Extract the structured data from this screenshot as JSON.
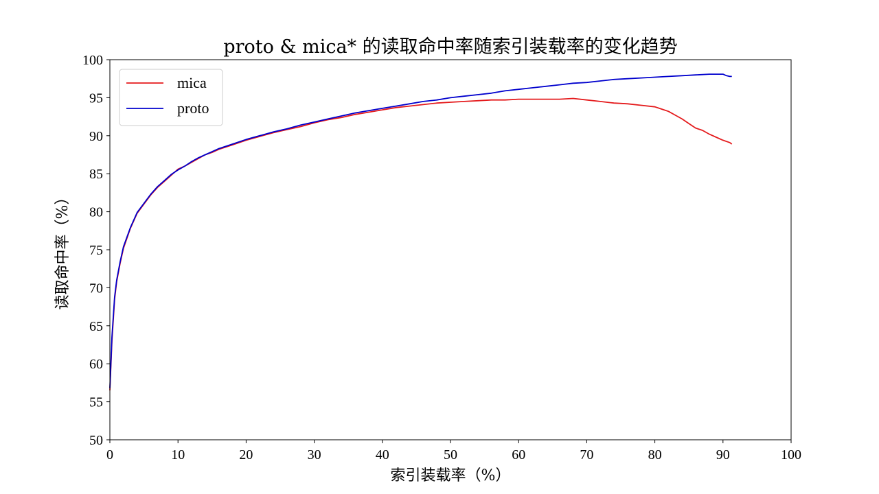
{
  "chart_data": {
    "type": "line",
    "title": "proto & mica* 的读取命中率随索引装载率的变化趋势",
    "xlabel": "索引装载率（%）",
    "ylabel": "读取命中率（%）",
    "xlim": [
      0,
      100
    ],
    "ylim": [
      50,
      100
    ],
    "x_ticks": [
      0,
      10,
      20,
      30,
      40,
      50,
      60,
      70,
      80,
      90,
      100
    ],
    "y_ticks": [
      50,
      55,
      60,
      65,
      70,
      75,
      80,
      85,
      90,
      95,
      100
    ],
    "grid": false,
    "legend_position": "top-left",
    "series": [
      {
        "name": "mica",
        "color": "#e41a1c",
        "x": [
          0,
          0.3,
          0.7,
          1.0,
          1.5,
          2.0,
          3.0,
          4.0,
          5.0,
          6.0,
          7.0,
          8.0,
          9.0,
          10.0,
          11.0,
          12.0,
          13.0,
          14.0,
          15.0,
          16.0,
          18.0,
          20.0,
          22.0,
          24.0,
          26.0,
          28.0,
          30.0,
          32.0,
          34.0,
          36.0,
          38.0,
          40.0,
          42.0,
          44.0,
          46.0,
          48.0,
          50.0,
          52.0,
          54.0,
          56.0,
          58.0,
          60.0,
          62.0,
          64.0,
          66.0,
          68.0,
          70.0,
          72.0,
          74.0,
          76.0,
          78.0,
          80.0,
          81.0,
          82.0,
          83.0,
          84.0,
          85.0,
          86.0,
          87.0,
          88.0,
          89.0,
          90.0,
          91.0,
          91.3
        ],
        "values": [
          56.5,
          63.0,
          68.5,
          70.8,
          73.2,
          75.2,
          77.8,
          79.8,
          81.0,
          82.2,
          83.2,
          84.0,
          84.8,
          85.6,
          86.0,
          86.5,
          87.0,
          87.5,
          87.8,
          88.2,
          88.8,
          89.4,
          89.9,
          90.4,
          90.8,
          91.2,
          91.7,
          92.1,
          92.4,
          92.8,
          93.1,
          93.4,
          93.7,
          93.9,
          94.1,
          94.3,
          94.4,
          94.5,
          94.6,
          94.7,
          94.7,
          94.8,
          94.8,
          94.8,
          94.8,
          94.9,
          94.7,
          94.5,
          94.3,
          94.2,
          94.0,
          93.8,
          93.5,
          93.2,
          92.7,
          92.2,
          91.6,
          91.0,
          90.7,
          90.2,
          89.8,
          89.4,
          89.1,
          88.9
        ]
      },
      {
        "name": "proto",
        "color": "#0000cd",
        "x": [
          0,
          0.3,
          0.7,
          1.0,
          1.5,
          2.0,
          3.0,
          4.0,
          5.0,
          6.0,
          7.0,
          8.0,
          9.0,
          10.0,
          11.0,
          12.0,
          13.0,
          14.0,
          15.0,
          16.0,
          18.0,
          20.0,
          22.0,
          24.0,
          26.0,
          28.0,
          30.0,
          32.0,
          34.0,
          36.0,
          38.0,
          40.0,
          42.0,
          44.0,
          46.0,
          48.0,
          50.0,
          52.0,
          54.0,
          56.0,
          58.0,
          60.0,
          62.0,
          64.0,
          66.0,
          68.0,
          70.0,
          72.0,
          74.0,
          76.0,
          78.0,
          80.0,
          82.0,
          84.0,
          86.0,
          88.0,
          89.0,
          90.0,
          90.5,
          91.0,
          91.3
        ],
        "values": [
          56.8,
          63.5,
          68.8,
          71.0,
          73.4,
          75.4,
          77.9,
          79.9,
          81.1,
          82.3,
          83.3,
          84.1,
          84.9,
          85.5,
          86.0,
          86.6,
          87.1,
          87.5,
          87.9,
          88.3,
          88.9,
          89.5,
          90.0,
          90.5,
          90.9,
          91.4,
          91.8,
          92.2,
          92.6,
          93.0,
          93.3,
          93.6,
          93.9,
          94.2,
          94.5,
          94.7,
          95.0,
          95.2,
          95.4,
          95.6,
          95.9,
          96.1,
          96.3,
          96.5,
          96.7,
          96.9,
          97.0,
          97.2,
          97.4,
          97.5,
          97.6,
          97.7,
          97.8,
          97.9,
          98.0,
          98.1,
          98.1,
          98.1,
          97.9,
          97.8,
          97.8
        ]
      }
    ]
  }
}
